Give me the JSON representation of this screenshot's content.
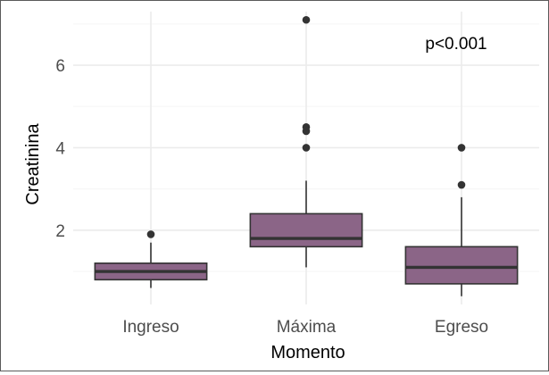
{
  "chart_data": {
    "type": "boxplot",
    "xlabel": "Momento",
    "ylabel": "Creatinina",
    "annotation": "p<0.001",
    "categories": [
      "Ingreso",
      "Máxima",
      "Egreso"
    ],
    "ylim": [
      0.2,
      7.3
    ],
    "yticks": [
      2,
      4,
      6
    ],
    "grid": true,
    "legend": "none",
    "colors": {
      "box_fill": "#8b6587",
      "box_stroke": "#333333",
      "grid_major": "#ebebeb",
      "grid_minor": "#f5f5f5",
      "outlier": "#333333",
      "tick_text": "#4d4d4d",
      "title_text": "#000000"
    },
    "boxes": [
      {
        "category": "Ingreso",
        "whisker_low": 0.6,
        "q1": 0.8,
        "median": 1.0,
        "q3": 1.2,
        "whisker_high": 1.7,
        "outliers": [
          1.9
        ]
      },
      {
        "category": "Máxima",
        "whisker_low": 1.1,
        "q1": 1.6,
        "median": 1.8,
        "q3": 2.4,
        "whisker_high": 3.2,
        "outliers": [
          4.0,
          4.4,
          4.5,
          7.1
        ]
      },
      {
        "category": "Egreso",
        "whisker_low": 0.4,
        "q1": 0.7,
        "median": 1.1,
        "q3": 1.6,
        "whisker_high": 2.8,
        "outliers": [
          3.1,
          4.0
        ]
      }
    ]
  }
}
